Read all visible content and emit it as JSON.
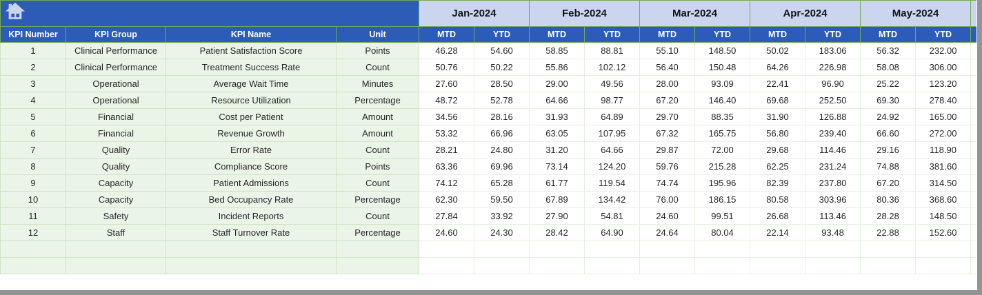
{
  "table": {
    "left_headers": [
      "KPI Number",
      "KPI Group",
      "KPI Name",
      "Unit"
    ],
    "months": [
      "Jan-2024",
      "Feb-2024",
      "Mar-2024",
      "Apr-2024",
      "May-2024"
    ],
    "period_labels": [
      "MTD",
      "YTD"
    ],
    "rows": [
      {
        "number": "1",
        "group": "Clinical Performance",
        "name": "Patient Satisfaction Score",
        "unit": "Points",
        "values": [
          "46.28",
          "54.60",
          "58.85",
          "88.81",
          "55.10",
          "148.50",
          "50.02",
          "183.06",
          "56.32",
          "232.00"
        ]
      },
      {
        "number": "2",
        "group": "Clinical Performance",
        "name": "Treatment Success Rate",
        "unit": "Count",
        "values": [
          "50.76",
          "50.22",
          "55.86",
          "102.12",
          "56.40",
          "150.48",
          "64.26",
          "226.98",
          "58.08",
          "306.00"
        ]
      },
      {
        "number": "3",
        "group": "Operational",
        "name": "Average Wait Time",
        "unit": "Minutes",
        "values": [
          "27.60",
          "28.50",
          "29.00",
          "49.56",
          "28.00",
          "93.09",
          "22.41",
          "96.90",
          "25.22",
          "123.20"
        ]
      },
      {
        "number": "4",
        "group": "Operational",
        "name": "Resource Utilization",
        "unit": "Percentage",
        "values": [
          "48.72",
          "52.78",
          "64.66",
          "98.77",
          "67.20",
          "146.40",
          "69.68",
          "252.50",
          "69.30",
          "278.40"
        ]
      },
      {
        "number": "5",
        "group": "Financial",
        "name": "Cost per Patient",
        "unit": "Amount",
        "values": [
          "34.56",
          "28.16",
          "31.93",
          "64.89",
          "29.70",
          "88.35",
          "31.90",
          "126.88",
          "24.92",
          "165.00"
        ]
      },
      {
        "number": "6",
        "group": "Financial",
        "name": "Revenue Growth",
        "unit": "Amount",
        "values": [
          "53.32",
          "66.96",
          "63.05",
          "107.95",
          "67.32",
          "165.75",
          "56.80",
          "239.40",
          "66.60",
          "272.00"
        ]
      },
      {
        "number": "7",
        "group": "Quality",
        "name": "Error Rate",
        "unit": "Count",
        "values": [
          "28.21",
          "24.80",
          "31.20",
          "64.66",
          "29.87",
          "72.00",
          "29.68",
          "114.46",
          "29.16",
          "118.90"
        ]
      },
      {
        "number": "8",
        "group": "Quality",
        "name": "Compliance Score",
        "unit": "Points",
        "values": [
          "63.36",
          "69.96",
          "73.14",
          "124.20",
          "59.76",
          "215.28",
          "62.25",
          "231.24",
          "74.88",
          "381.60"
        ]
      },
      {
        "number": "9",
        "group": "Capacity",
        "name": "Patient Admissions",
        "unit": "Count",
        "values": [
          "74.12",
          "65.28",
          "61.77",
          "119.54",
          "74.74",
          "195.96",
          "82.39",
          "237.80",
          "67.20",
          "314.50"
        ]
      },
      {
        "number": "10",
        "group": "Capacity",
        "name": "Bed Occupancy Rate",
        "unit": "Percentage",
        "values": [
          "62.30",
          "59.50",
          "67.89",
          "134.42",
          "76.00",
          "186.15",
          "80.58",
          "303.96",
          "80.36",
          "368.60"
        ]
      },
      {
        "number": "11",
        "group": "Safety",
        "name": "Incident Reports",
        "unit": "Count",
        "values": [
          "27.84",
          "33.92",
          "27.90",
          "54.81",
          "24.60",
          "99.51",
          "26.68",
          "113.46",
          "28.28",
          "148.50"
        ]
      },
      {
        "number": "12",
        "group": "Staff",
        "name": "Staff Turnover Rate",
        "unit": "Percentage",
        "values": [
          "24.60",
          "24.30",
          "28.42",
          "64.90",
          "24.64",
          "80.04",
          "22.14",
          "93.48",
          "22.88",
          "152.60"
        ]
      }
    ],
    "empty_row_count": 2
  },
  "icons": {
    "home": "home-icon"
  },
  "colors": {
    "header_blue": "#2d5cb8",
    "month_header_bg": "#cbd5ee",
    "header_text": "#ffffff",
    "row_green_bg": "#eaf5e8",
    "grid_green": "#74a957",
    "light_grid_green": "#cfe3c6",
    "numeric_grid": "#e6f0e1",
    "data_text": "#262626",
    "frame_gray": "#949494"
  }
}
